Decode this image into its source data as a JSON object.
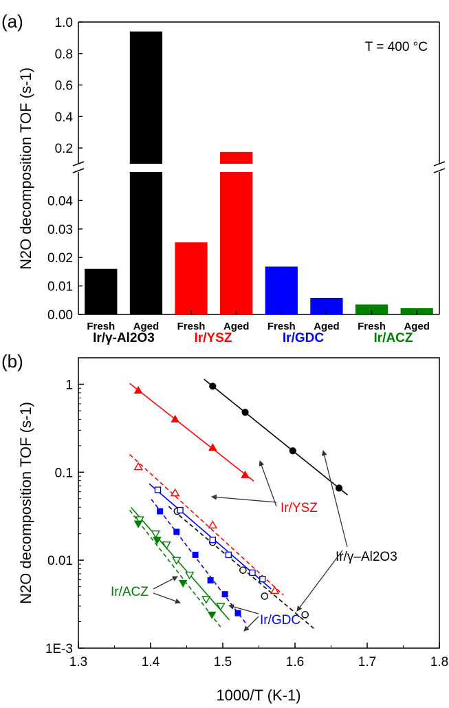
{
  "chart_data": [
    {
      "panel_label": "(a)",
      "type": "bar",
      "ylabel": "N2O decomposition TOF (s-1)",
      "annotation": "T = 400 °C",
      "y_axis_break": true,
      "ylim_lower": [
        0,
        0.05
      ],
      "ylim_upper": [
        0.1,
        1.0
      ],
      "yticks_lower": [
        "0.00",
        "0.01",
        "0.02",
        "0.03",
        "0.04"
      ],
      "yticks_upper": [
        "0.2",
        "0.4",
        "0.6",
        "0.8",
        "1.0"
      ],
      "categories": [
        "Fresh",
        "Aged",
        "Fresh",
        "Aged",
        "Fresh",
        "Aged",
        "Fresh",
        "Aged"
      ],
      "values": [
        0.016,
        0.94,
        0.0253,
        0.175,
        0.0168,
        0.0058,
        0.0035,
        0.0022
      ],
      "bar_colors": [
        "#000000",
        "#000000",
        "#ff0000",
        "#ff0000",
        "#0000ff",
        "#0000ff",
        "#008000",
        "#008000"
      ],
      "groups": [
        {
          "name": "Ir/γ-Al2O3",
          "color": "#000000"
        },
        {
          "name": "Ir/YSZ",
          "color": "#ff0000"
        },
        {
          "name": "Ir/GDC",
          "color": "#0000ff"
        },
        {
          "name": "Ir/ACZ",
          "color": "#008000"
        }
      ]
    },
    {
      "panel_label": "(b)",
      "type": "scatter",
      "xlabel": "1000/T (K-1)",
      "ylabel": "N2O decomposition TOF (s-1)",
      "yscale": "log",
      "xlim": [
        1.3,
        1.8
      ],
      "ylim": [
        0.001,
        2
      ],
      "xticks": [
        "1.3",
        "1.4",
        "1.5",
        "1.6",
        "1.7",
        "1.8"
      ],
      "yticks": [
        "1E-3",
        "0.01",
        "0.1",
        "1"
      ],
      "series": [
        {
          "key": "al_aged",
          "color": "#000000",
          "marker": "filled-circle",
          "line": "solid",
          "x": [
            1.486,
            1.531,
            1.597,
            1.661
          ],
          "y": [
            0.95,
            0.48,
            0.175,
            0.066
          ]
        },
        {
          "key": "al_fresh",
          "color": "#000000",
          "marker": "open-circle",
          "line": "dashed",
          "x": [
            1.437,
            1.486,
            1.528,
            1.558,
            1.614
          ],
          "y": [
            0.036,
            0.016,
            0.0077,
            0.0039,
            0.0024
          ]
        },
        {
          "key": "ysz_aged",
          "color": "#ff0000",
          "marker": "filled-triangle",
          "line": "solid",
          "x": [
            1.383,
            1.434,
            1.486,
            1.531
          ],
          "y": [
            0.85,
            0.4,
            0.19,
            0.093
          ]
        },
        {
          "key": "ysz_fresh",
          "color": "#ff0000",
          "marker": "open-triangle",
          "line": "dashed",
          "x": [
            1.383,
            1.434,
            1.486,
            1.572
          ],
          "y": [
            0.115,
            0.058,
            0.025,
            0.0045
          ]
        },
        {
          "key": "gdc_fresh",
          "color": "#0000ff",
          "marker": "open-square",
          "line": "solid",
          "x": [
            1.41,
            1.441,
            1.486,
            1.508,
            1.541,
            1.555
          ],
          "y": [
            0.063,
            0.037,
            0.017,
            0.0115,
            0.0072,
            0.0061
          ]
        },
        {
          "key": "gdc_aged",
          "color": "#0000ff",
          "marker": "filled-square",
          "line": "dashed",
          "x": [
            1.413,
            1.436,
            1.462,
            1.483,
            1.503,
            1.521
          ],
          "y": [
            0.036,
            0.021,
            0.0115,
            0.0059,
            0.0041,
            0.0025
          ]
        },
        {
          "key": "acz_fresh",
          "color": "#008000",
          "marker": "open-down-triangle",
          "line": "solid",
          "x": [
            1.385,
            1.407,
            1.422,
            1.436,
            1.454,
            1.477,
            1.497
          ],
          "y": [
            0.029,
            0.02,
            0.015,
            0.01,
            0.0068,
            0.0036,
            0.003
          ]
        },
        {
          "key": "acz_aged",
          "color": "#008000",
          "marker": "filled-down-triangle",
          "line": "dashed",
          "x": [
            1.383,
            1.409,
            1.445,
            1.485
          ],
          "y": [
            0.026,
            0.017,
            0.0055,
            0.0024
          ]
        }
      ],
      "annotations": [
        {
          "text": "Ir/YSZ",
          "color": "#ff0000"
        },
        {
          "text": "Ir/γ–Al2O3",
          "color": "#000000"
        },
        {
          "text": "Ir/GDC",
          "color": "#0000ff"
        },
        {
          "text": "Ir/ACZ",
          "color": "#008000"
        }
      ]
    }
  ]
}
